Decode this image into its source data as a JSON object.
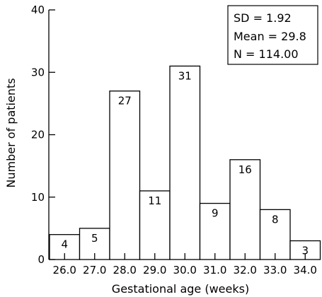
{
  "chart_data": {
    "type": "bar",
    "title": "",
    "xlabel": "Gestational age (weeks)",
    "ylabel": "Number of patients",
    "categories": [
      "26.0",
      "27.0",
      "28.0",
      "29.0",
      "30.0",
      "31.0",
      "32.0",
      "33.0",
      "34.0"
    ],
    "values": [
      4,
      5,
      27,
      11,
      31,
      9,
      16,
      8,
      3
    ],
    "data_labels": [
      "4",
      "5",
      "27",
      "11",
      "31",
      "9",
      "16",
      "8",
      "3"
    ],
    "yticks": [
      "0",
      "10",
      "20",
      "30",
      "40"
    ],
    "ylim": [
      0,
      40
    ],
    "grid": false,
    "legend": "none",
    "bar_fill": "#ffffff",
    "bar_stroke": "#000000",
    "stats_box": {
      "placement": "top-right",
      "lines": [
        "SD = 1.92",
        "Mean = 29.8",
        "N = 114.00"
      ]
    }
  }
}
